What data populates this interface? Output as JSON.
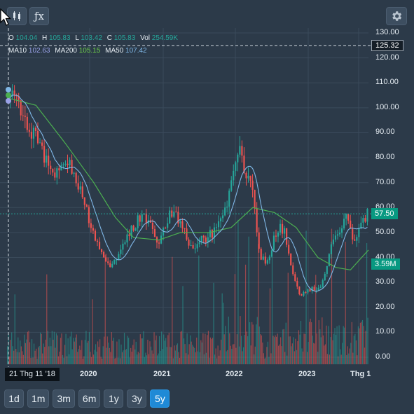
{
  "toolbar": {
    "chart_type_icon": "candlestick-icon",
    "indicator_label": "ƒx",
    "settings_icon": "gear-icon"
  },
  "ohlc": {
    "o_label": "O",
    "o_value": "104.04",
    "h_label": "H",
    "h_value": "105.83",
    "l_label": "L",
    "l_value": "103.42",
    "c_label": "C",
    "c_value": "105.83",
    "vol_label": "Vol",
    "vol_value": "254.59K"
  },
  "ma": {
    "ma10_label": "MA10",
    "ma10_value": "102.63",
    "ma200_label": "MA200",
    "ma200_value": "105.15",
    "ma50_label": "MA50",
    "ma50_value": "107.42"
  },
  "colors": {
    "up": "#26a69a",
    "down": "#ef5350",
    "ma10": "#9aa2e8",
    "ma50": "#7fb7e6",
    "ma200": "#4caf50",
    "price_tag": "#089981",
    "crosshair_tag": "#151e27"
  },
  "crosshair": {
    "price_label": "125.32",
    "date_label": "21 Thg 11 '18"
  },
  "last_price_label": "57.50",
  "last_volume_label": "3.59M",
  "ranges": [
    {
      "label": "1d"
    },
    {
      "label": "1m"
    },
    {
      "label": "3m"
    },
    {
      "label": "6m"
    },
    {
      "label": "1y"
    },
    {
      "label": "3y"
    },
    {
      "label": "5y",
      "active": true
    }
  ],
  "chart_data": {
    "type": "candlestick",
    "y_ticks": [
      "130.00",
      "120.00",
      "110.00",
      "100.00",
      "90.00",
      "80.00",
      "70.00",
      "60.00",
      "50.00",
      "40.00",
      "30.00",
      "20.00",
      "10.00",
      "0.00"
    ],
    "ylim": [
      0,
      130
    ],
    "x_ticks": [
      "2020",
      "2021",
      "2022",
      "2023",
      "Thg 1"
    ],
    "grid": true,
    "close_anchors": [
      {
        "t": 0.0,
        "v": 104
      },
      {
        "t": 0.02,
        "v": 108
      },
      {
        "t": 0.05,
        "v": 93
      },
      {
        "t": 0.09,
        "v": 86
      },
      {
        "t": 0.12,
        "v": 72
      },
      {
        "t": 0.16,
        "v": 79
      },
      {
        "t": 0.19,
        "v": 72
      },
      {
        "t": 0.22,
        "v": 58
      },
      {
        "t": 0.25,
        "v": 45
      },
      {
        "t": 0.27,
        "v": 38
      },
      {
        "t": 0.29,
        "v": 36
      },
      {
        "t": 0.31,
        "v": 43
      },
      {
        "t": 0.34,
        "v": 50
      },
      {
        "t": 0.37,
        "v": 57
      },
      {
        "t": 0.4,
        "v": 52
      },
      {
        "t": 0.42,
        "v": 45
      },
      {
        "t": 0.45,
        "v": 58
      },
      {
        "t": 0.48,
        "v": 55
      },
      {
        "t": 0.51,
        "v": 44
      },
      {
        "t": 0.54,
        "v": 47
      },
      {
        "t": 0.57,
        "v": 50
      },
      {
        "t": 0.6,
        "v": 56
      },
      {
        "t": 0.62,
        "v": 68
      },
      {
        "t": 0.64,
        "v": 85
      },
      {
        "t": 0.66,
        "v": 75
      },
      {
        "t": 0.68,
        "v": 67
      },
      {
        "t": 0.7,
        "v": 41
      },
      {
        "t": 0.72,
        "v": 38
      },
      {
        "t": 0.75,
        "v": 52
      },
      {
        "t": 0.77,
        "v": 51
      },
      {
        "t": 0.79,
        "v": 35
      },
      {
        "t": 0.81,
        "v": 25
      },
      {
        "t": 0.84,
        "v": 27
      },
      {
        "t": 0.87,
        "v": 28
      },
      {
        "t": 0.9,
        "v": 44
      },
      {
        "t": 0.92,
        "v": 50
      },
      {
        "t": 0.94,
        "v": 58
      },
      {
        "t": 0.96,
        "v": 47
      },
      {
        "t": 0.98,
        "v": 53
      },
      {
        "t": 1.0,
        "v": 57.5
      }
    ],
    "ma200_anchors": [
      {
        "t": 0.0,
        "v": 104
      },
      {
        "t": 0.08,
        "v": 101
      },
      {
        "t": 0.16,
        "v": 86
      },
      {
        "t": 0.24,
        "v": 70
      },
      {
        "t": 0.3,
        "v": 56
      },
      {
        "t": 0.35,
        "v": 48
      },
      {
        "t": 0.42,
        "v": 47
      },
      {
        "t": 0.48,
        "v": 50
      },
      {
        "t": 0.56,
        "v": 50
      },
      {
        "t": 0.62,
        "v": 52
      },
      {
        "t": 0.68,
        "v": 60
      },
      {
        "t": 0.74,
        "v": 58
      },
      {
        "t": 0.8,
        "v": 52
      },
      {
        "t": 0.86,
        "v": 40
      },
      {
        "t": 0.91,
        "v": 36
      },
      {
        "t": 0.95,
        "v": 35
      },
      {
        "t": 1.0,
        "v": 43
      }
    ]
  }
}
